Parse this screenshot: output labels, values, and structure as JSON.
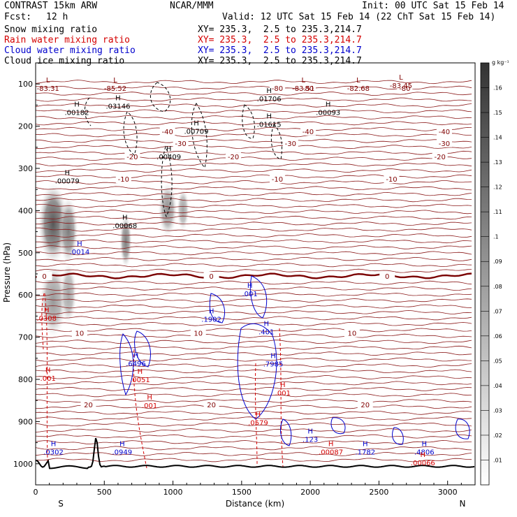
{
  "header": {
    "model": "CONTRAST 15km ARW",
    "center": "NCAR/MMM",
    "init": "Init: 00 UTC Sat 15 Feb 14",
    "fcst_label": "Fcst:",
    "fcst_value": "12 h",
    "valid": "Valid: 12 UTC Sat 15 Feb 14 (22 ChT Sat 15 Feb 14)"
  },
  "legend": [
    {
      "label": "Snow mixing ratio",
      "xy": "XY= 235.3,  2.5 to 235.3,214.7",
      "color": "#000000"
    },
    {
      "label": "Rain water mixing ratio",
      "xy": "XY= 235.3,  2.5 to 235.3,214.7",
      "color": "#d40000"
    },
    {
      "label": "Cloud water mixing ratio",
      "xy": "XY= 235.3,  2.5 to 235.3,214.7",
      "color": "#0000cc"
    },
    {
      "label": "Cloud ice mixing ratio",
      "xy": "XY= 235.3,  2.5 to 235.3,214.7",
      "color": "#000000"
    }
  ],
  "chart_data": {
    "type": "contour",
    "xlabel": "Distance (km)",
    "ylabel": "Pressure (hPa)",
    "xlim": [
      0,
      3200
    ],
    "ylim": [
      1050,
      50
    ],
    "xticks": [
      0,
      500,
      1000,
      1500,
      2000,
      2500,
      3000
    ],
    "yticks": [
      100,
      200,
      300,
      400,
      500,
      600,
      700,
      800,
      900,
      1000
    ],
    "end_labels": {
      "left": "S",
      "right": "N"
    },
    "colorbar": {
      "unit": "g kg⁻¹",
      "levels": [
        ".01",
        ".02",
        ".03",
        ".04",
        ".05",
        ".06",
        ".07",
        ".08",
        ".09",
        ".1",
        ".11",
        ".12",
        ".13",
        ".14",
        ".15",
        ".16"
      ]
    },
    "temperature_isotherms": [
      {
        "label": "-80",
        "p": 110
      },
      {
        "label": "-40",
        "p": 212
      },
      {
        "label": "-30",
        "p": 240
      },
      {
        "label": "-20",
        "p": 272
      },
      {
        "label": "-10",
        "p": 325
      },
      {
        "label": "0",
        "p": 555
      },
      {
        "label": "10",
        "p": 690
      },
      {
        "label": "20",
        "p": 860
      }
    ],
    "annotations": [
      {
        "type": "L",
        "value": "-83.31",
        "x": 90,
        "p": 103,
        "color": "#800000"
      },
      {
        "type": "L",
        "value": "-85.52",
        "x": 580,
        "p": 103,
        "color": "#800000"
      },
      {
        "type": "L",
        "value": "-83.51",
        "x": 1950,
        "p": 103,
        "color": "#800000"
      },
      {
        "type": "L",
        "value": "-82.68",
        "x": 2350,
        "p": 103,
        "color": "#800000"
      },
      {
        "type": "L",
        "value": "-83.45",
        "x": 2660,
        "p": 96,
        "color": "#800000"
      },
      {
        "type": "H",
        "value": ".00182",
        "x": 300,
        "p": 160,
        "color": "#000000"
      },
      {
        "type": "H",
        "value": ".03146",
        "x": 600,
        "p": 145,
        "color": "#000000"
      },
      {
        "type": "H",
        "value": ".01706",
        "x": 1700,
        "p": 128,
        "color": "#000000"
      },
      {
        "type": "H",
        "value": ".00093",
        "x": 2130,
        "p": 160,
        "color": "#000000"
      },
      {
        "type": "H",
        "value": ".00709",
        "x": 1170,
        "p": 205,
        "color": "#000000"
      },
      {
        "type": "H",
        "value": ".01615",
        "x": 1700,
        "p": 188,
        "color": "#000000"
      },
      {
        "type": "H",
        "value": ".00409",
        "x": 970,
        "p": 265,
        "color": "#000000"
      },
      {
        "type": "H",
        "value": ".00079",
        "x": 230,
        "p": 322,
        "color": "#000000"
      },
      {
        "type": "H",
        "value": ".00068",
        "x": 650,
        "p": 428,
        "color": "#000000"
      },
      {
        "type": "H",
        "value": ".0014",
        "x": 320,
        "p": 490,
        "color": "#0000cc"
      },
      {
        "type": "H",
        "value": ".001",
        "x": 1560,
        "p": 590,
        "color": "#0000cc"
      },
      {
        "type": "H",
        "value": ".1902",
        "x": 1280,
        "p": 650,
        "color": "#0000cc"
      },
      {
        "type": "H",
        "value": ".401",
        "x": 1680,
        "p": 680,
        "color": "#0000cc"
      },
      {
        "type": "H",
        "value": ".6496",
        "x": 730,
        "p": 755,
        "color": "#0000cc"
      },
      {
        "type": "H",
        "value": ".7985",
        "x": 1730,
        "p": 756,
        "color": "#0000cc"
      },
      {
        "type": "H",
        "value": ".0308",
        "x": 80,
        "p": 648,
        "color": "#d40000"
      },
      {
        "type": "H",
        "value": ".001",
        "x": 90,
        "p": 790,
        "color": "#d40000"
      },
      {
        "type": "H",
        "value": ".0051",
        "x": 760,
        "p": 793,
        "color": "#d40000"
      },
      {
        "type": "H",
        "value": ".001",
        "x": 830,
        "p": 855,
        "color": "#d40000"
      },
      {
        "type": "H",
        "value": ".001",
        "x": 1800,
        "p": 825,
        "color": "#d40000"
      },
      {
        "type": "H",
        "value": ".0579",
        "x": 1620,
        "p": 895,
        "color": "#d40000"
      },
      {
        "type": "H",
        "value": ".0302",
        "x": 130,
        "p": 965,
        "color": "#0000cc"
      },
      {
        "type": "H",
        "value": ".0949",
        "x": 630,
        "p": 965,
        "color": "#0000cc"
      },
      {
        "type": "H",
        "value": ".123",
        "x": 2000,
        "p": 935,
        "color": "#0000cc"
      },
      {
        "type": "H",
        "value": ".00087",
        "x": 2150,
        "p": 965,
        "color": "#d40000"
      },
      {
        "type": "H",
        "value": ".1782",
        "x": 2400,
        "p": 965,
        "color": "#0000cc"
      },
      {
        "type": "H",
        "value": ".4806",
        "x": 2830,
        "p": 965,
        "color": "#0000cc"
      },
      {
        "type": "H",
        "value": ".00066",
        "x": 2820,
        "p": 990,
        "color": "#d40000"
      }
    ]
  }
}
